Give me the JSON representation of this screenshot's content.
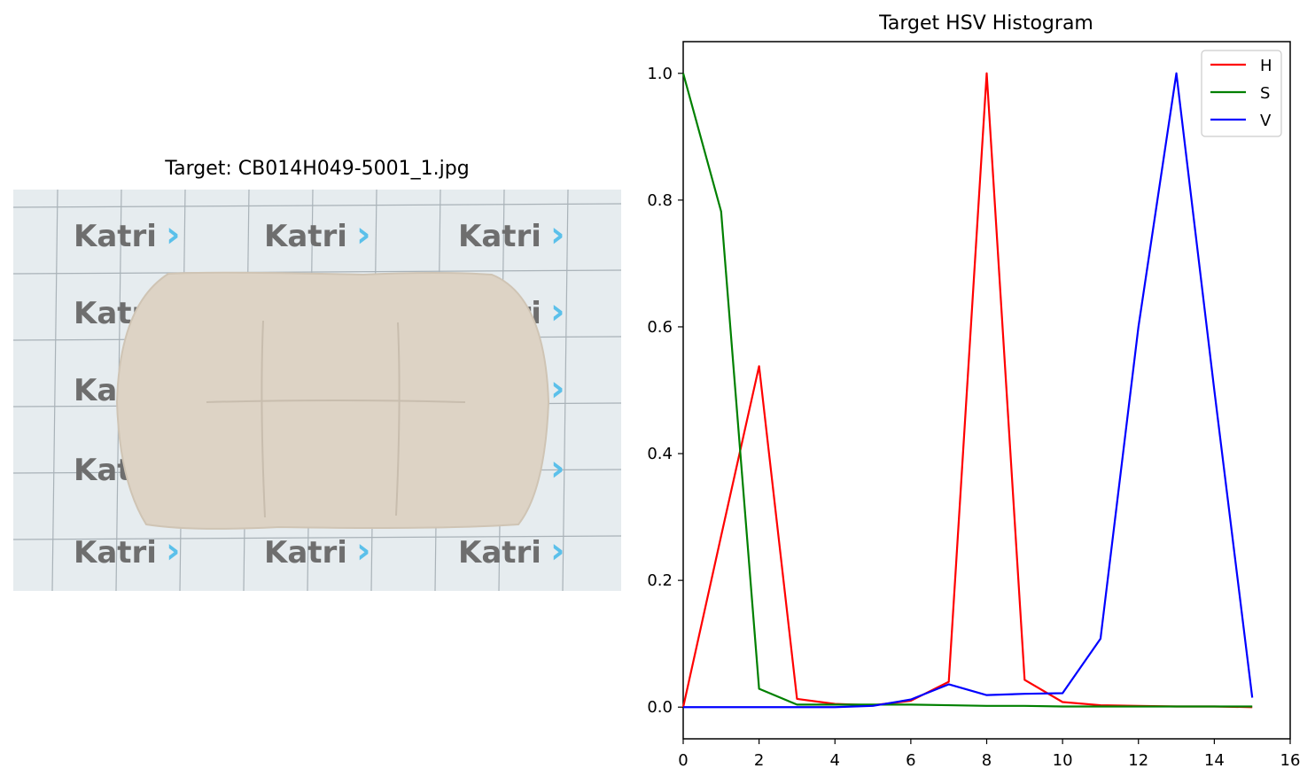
{
  "photo_panel": {
    "title": "Target: CB014H049-5001_1.jpg",
    "watermark_text": "Katri",
    "watermark_arrow": "›",
    "background_color": "#e6ecef",
    "grid_color": "#a9b2b8",
    "cushion_color": "#ddd3c5",
    "watermark_color": "#6e6e6e",
    "arrow_color": "#5bc0ea"
  },
  "chart_data": {
    "type": "line",
    "title": "Target HSV Histogram",
    "xlabel": "",
    "ylabel": "",
    "xlim": [
      0,
      16
    ],
    "ylim": [
      -0.05,
      1.05
    ],
    "xticks": [
      "0",
      "2",
      "4",
      "6",
      "8",
      "10",
      "12",
      "14",
      "16"
    ],
    "yticks": [
      "0.0",
      "0.2",
      "0.4",
      "0.6",
      "0.8",
      "1.0"
    ],
    "grid": false,
    "legend_position": "top-right",
    "x": [
      0,
      1,
      2,
      3,
      4,
      5,
      6,
      7,
      8,
      9,
      10,
      11,
      12,
      13,
      14,
      15
    ],
    "series": [
      {
        "name": "H",
        "color": "#ff0000",
        "values": [
          0.0,
          0.27,
          0.538,
          0.013,
          0.005,
          0.003,
          0.01,
          0.04,
          1.0,
          0.043,
          0.008,
          0.003,
          0.002,
          0.001,
          0.001,
          0.0
        ]
      },
      {
        "name": "S",
        "color": "#008000",
        "values": [
          1.0,
          0.782,
          0.029,
          0.004,
          0.004,
          0.004,
          0.004,
          0.003,
          0.002,
          0.002,
          0.001,
          0.001,
          0.001,
          0.001,
          0.001,
          0.001
        ]
      },
      {
        "name": "V",
        "color": "#0000ff",
        "values": [
          0.0,
          0.0,
          0.0,
          0.0,
          0.0,
          0.002,
          0.012,
          0.036,
          0.019,
          0.021,
          0.022,
          0.108,
          0.6,
          1.0,
          0.5,
          0.015
        ]
      }
    ]
  }
}
